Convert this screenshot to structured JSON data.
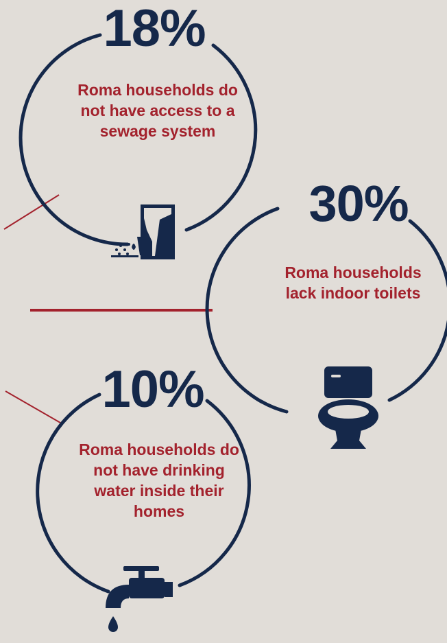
{
  "colors": {
    "background": "#e1ddd8",
    "navy": "#15284a",
    "red": "#a3222d"
  },
  "stats": [
    {
      "value": "18%",
      "text": "Roma households do not have access to a sewage system",
      "icon": "sewage-pipe-icon"
    },
    {
      "value": "30%",
      "text": "Roma households lack indoor toilets",
      "icon": "toilet-icon"
    },
    {
      "value": "10%",
      "text": "Roma households do not have drinking water inside their homes",
      "icon": "water-tap-icon"
    }
  ]
}
